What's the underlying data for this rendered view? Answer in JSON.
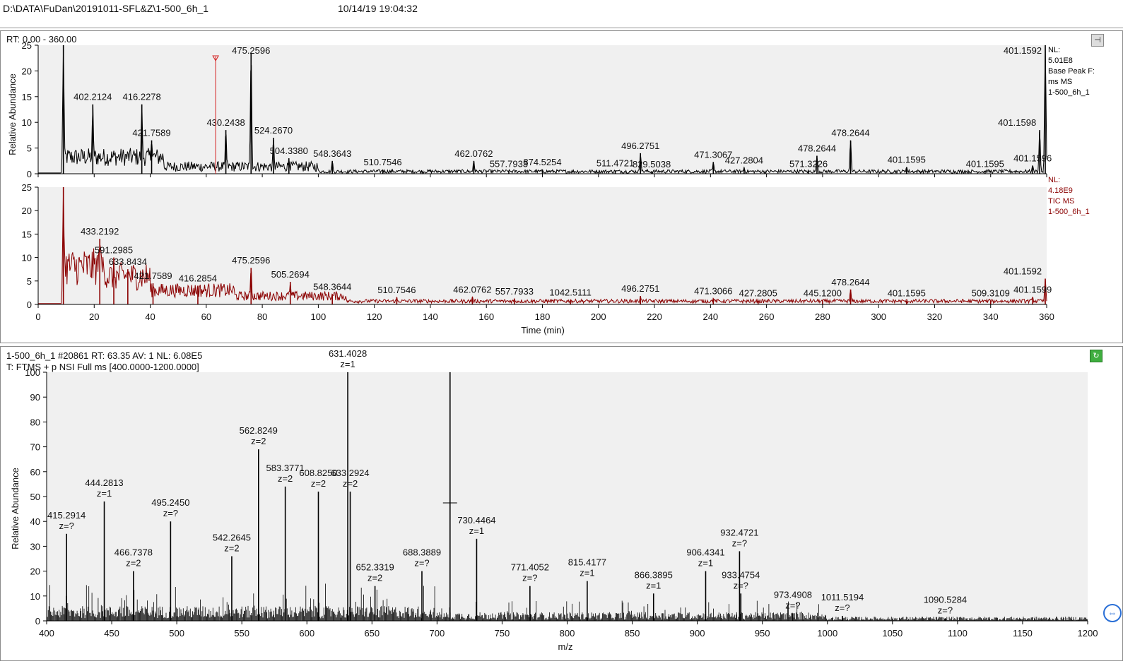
{
  "window": {
    "path": "D:\\DATA\\FuDan\\20191011-SFL&Z\\1-500_6h_1",
    "timestamp": "10/14/19 19:04:32",
    "pin_icon": "pin-icon",
    "spectrum_icon": "green-refresh-icon",
    "side_icon": "arrow-circle-icon"
  },
  "chromatogram": {
    "range_label": "RT: 0.00 - 360.00",
    "top": {
      "nl_lines": [
        "NL:",
        "5.01E8",
        "Base Peak F:",
        "ms  MS",
        "1-500_6h_1"
      ],
      "color": "#000000",
      "selected_rt": 63.35
    },
    "bottom": {
      "nl_lines": [
        "NL:",
        "4.18E9",
        "TIC  MS",
        "1-500_6h_1"
      ],
      "color": "#8b0000"
    }
  },
  "chart_data": [
    {
      "type": "line",
      "title": "Base Peak chromatogram",
      "xlabel": "Time (min)",
      "ylabel": "Relative Abundance",
      "xlim": [
        0,
        360
      ],
      "ylim": [
        0,
        25
      ],
      "x_ticks": [
        0,
        20,
        40,
        60,
        80,
        100,
        120,
        140,
        160,
        180,
        200,
        220,
        240,
        260,
        280,
        300,
        320,
        340,
        360
      ],
      "y_ticks": [
        0,
        5,
        10,
        15,
        20,
        25
      ],
      "peaks": [
        {
          "x": 9,
          "y": 25,
          "label": ""
        },
        {
          "x": 19.5,
          "y": 13.5,
          "label": "402.2124"
        },
        {
          "x": 37,
          "y": 13.5,
          "label": "416.2278"
        },
        {
          "x": 40.5,
          "y": 6.5,
          "label": "421.7589"
        },
        {
          "x": 67,
          "y": 8.5,
          "label": "430.2438"
        },
        {
          "x": 76,
          "y": 23.5,
          "label": "475.2596"
        },
        {
          "x": 84,
          "y": 7,
          "label": "524.2670"
        },
        {
          "x": 89.5,
          "y": 3,
          "label": "504.3380"
        },
        {
          "x": 105,
          "y": 2.5,
          "label": "548.3643"
        },
        {
          "x": 123,
          "y": 0.8,
          "label": "510.7546"
        },
        {
          "x": 155.5,
          "y": 2.5,
          "label": "462.0762"
        },
        {
          "x": 168,
          "y": 0.5,
          "label": "557.7933"
        },
        {
          "x": 180,
          "y": 0.8,
          "label": "874.5254"
        },
        {
          "x": 206,
          "y": 0.6,
          "label": "511.4721"
        },
        {
          "x": 215,
          "y": 4,
          "label": "496.2751"
        },
        {
          "x": 219,
          "y": 0.4,
          "label": "829.5038"
        },
        {
          "x": 241,
          "y": 2.3,
          "label": "471.3067"
        },
        {
          "x": 252,
          "y": 1.2,
          "label": "427.2804"
        },
        {
          "x": 275,
          "y": 0.5,
          "label": "571.3226"
        },
        {
          "x": 278,
          "y": 3.5,
          "label": "478.2644"
        },
        {
          "x": 290,
          "y": 6.5,
          "label": "478.2644"
        },
        {
          "x": 310,
          "y": 1.3,
          "label": "401.1595"
        },
        {
          "x": 338,
          "y": 0.5,
          "label": "401.1595"
        },
        {
          "x": 355,
          "y": 1.6,
          "label": "401.1596"
        },
        {
          "x": 357.5,
          "y": 8.5,
          "label": "401.1598"
        },
        {
          "x": 359.5,
          "y": 25,
          "label": "401.1592"
        }
      ]
    },
    {
      "type": "line",
      "title": "TIC chromatogram",
      "xlabel": "Time (min)",
      "ylabel": "Relative Abundance",
      "xlim": [
        0,
        360
      ],
      "ylim": [
        0,
        25
      ],
      "x_ticks": [
        0,
        20,
        40,
        60,
        80,
        100,
        120,
        140,
        160,
        180,
        200,
        220,
        240,
        260,
        280,
        300,
        320,
        340,
        360
      ],
      "y_ticks": [
        0,
        5,
        10,
        15,
        20,
        25
      ],
      "peaks": [
        {
          "x": 9,
          "y": 25,
          "label": ""
        },
        {
          "x": 22,
          "y": 14,
          "label": "433.2192"
        },
        {
          "x": 27,
          "y": 10,
          "label": "591.2985"
        },
        {
          "x": 32,
          "y": 7.5,
          "label": "633.8434"
        },
        {
          "x": 41,
          "y": 4.5,
          "label": "421.7589"
        },
        {
          "x": 57,
          "y": 4,
          "label": "416.2854"
        },
        {
          "x": 76,
          "y": 7.8,
          "label": "475.2596"
        },
        {
          "x": 90,
          "y": 4.8,
          "label": "505.2694"
        },
        {
          "x": 105,
          "y": 2.2,
          "label": "548.3644"
        },
        {
          "x": 128,
          "y": 1.5,
          "label": "510.7546"
        },
        {
          "x": 155,
          "y": 1.6,
          "label": "462.0762"
        },
        {
          "x": 170,
          "y": 1.2,
          "label": "557.7933"
        },
        {
          "x": 190,
          "y": 1,
          "label": "1042.5111"
        },
        {
          "x": 215,
          "y": 1.8,
          "label": "496.2751"
        },
        {
          "x": 241,
          "y": 1.3,
          "label": "471.3066"
        },
        {
          "x": 257,
          "y": 0.8,
          "label": "427.2805"
        },
        {
          "x": 280,
          "y": 0.8,
          "label": "445.1200"
        },
        {
          "x": 290,
          "y": 3.2,
          "label": "478.2644"
        },
        {
          "x": 310,
          "y": 0.8,
          "label": "401.1595"
        },
        {
          "x": 340,
          "y": 0.8,
          "label": "509.3109"
        },
        {
          "x": 355,
          "y": 1.6,
          "label": "401.1599"
        },
        {
          "x": 359.5,
          "y": 5.5,
          "label": "401.1592"
        }
      ]
    },
    {
      "type": "bar",
      "title": "1-500_6h_1 #20861  RT: 63.35  AV: 1  NL: 6.08E5",
      "xlabel": "m/z",
      "ylabel": "Relative Abundance",
      "xlim": [
        400,
        1200
      ],
      "ylim": [
        0,
        100
      ],
      "x_ticks": [
        400,
        450,
        500,
        550,
        600,
        650,
        700,
        750,
        800,
        850,
        900,
        950,
        1000,
        1050,
        1100,
        1150,
        1200
      ],
      "y_ticks": [
        0,
        10,
        20,
        30,
        40,
        50,
        60,
        70,
        80,
        90,
        100
      ],
      "peaks": [
        {
          "x": 415.2914,
          "y": 35,
          "label": "415.2914",
          "z": "z=?"
        },
        {
          "x": 444.2813,
          "y": 48,
          "label": "444.2813",
          "z": "z=1"
        },
        {
          "x": 466.7378,
          "y": 20,
          "label": "466.7378",
          "z": "z=2"
        },
        {
          "x": 495.245,
          "y": 40,
          "label": "495.2450",
          "z": "z=?"
        },
        {
          "x": 542.2645,
          "y": 26,
          "label": "542.2645",
          "z": "z=2"
        },
        {
          "x": 562.8249,
          "y": 69,
          "label": "562.8249",
          "z": "z=2"
        },
        {
          "x": 583.3771,
          "y": 54,
          "label": "583.3771",
          "z": "z=2"
        },
        {
          "x": 608.825,
          "y": 52,
          "label": "608.8250",
          "z": "z=2"
        },
        {
          "x": 631.4028,
          "y": 100,
          "label": "631.4028",
          "z": "z=1"
        },
        {
          "x": 633.2924,
          "y": 52,
          "label": "633.2924",
          "z": "z=2"
        },
        {
          "x": 652.3319,
          "y": 14,
          "label": "652.3319",
          "z": "z=2"
        },
        {
          "x": 688.3889,
          "y": 20,
          "label": "688.3889",
          "z": "z=?"
        },
        {
          "x": 710.0,
          "y": 100,
          "label": "",
          "z": ""
        },
        {
          "x": 730.4464,
          "y": 33,
          "label": "730.4464",
          "z": "z=1"
        },
        {
          "x": 771.4052,
          "y": 14,
          "label": "771.4052",
          "z": "z=?"
        },
        {
          "x": 815.4177,
          "y": 16,
          "label": "815.4177",
          "z": "z=1"
        },
        {
          "x": 866.3895,
          "y": 11,
          "label": "866.3895",
          "z": "z=1"
        },
        {
          "x": 906.4341,
          "y": 20,
          "label": "906.4341",
          "z": "z=1"
        },
        {
          "x": 932.4721,
          "y": 28,
          "label": "932.4721",
          "z": "z=?"
        },
        {
          "x": 933.4754,
          "y": 11,
          "label": "933.4754",
          "z": "z=?"
        },
        {
          "x": 973.4908,
          "y": 3,
          "label": "973.4908",
          "z": "z=?"
        },
        {
          "x": 1011.5194,
          "y": 2,
          "label": "1011.5194",
          "z": "z=?"
        },
        {
          "x": 1090.5284,
          "y": 1,
          "label": "1090.5284",
          "z": "z=?"
        }
      ]
    }
  ],
  "spectrum": {
    "header": "1-500_6h_1 #20861   RT: 63.35   AV: 1   NL: 6.08E5",
    "filter": "T: FTMS + p NSI Full ms [400.0000-1200.0000]",
    "crosshair_mz": 710
  }
}
